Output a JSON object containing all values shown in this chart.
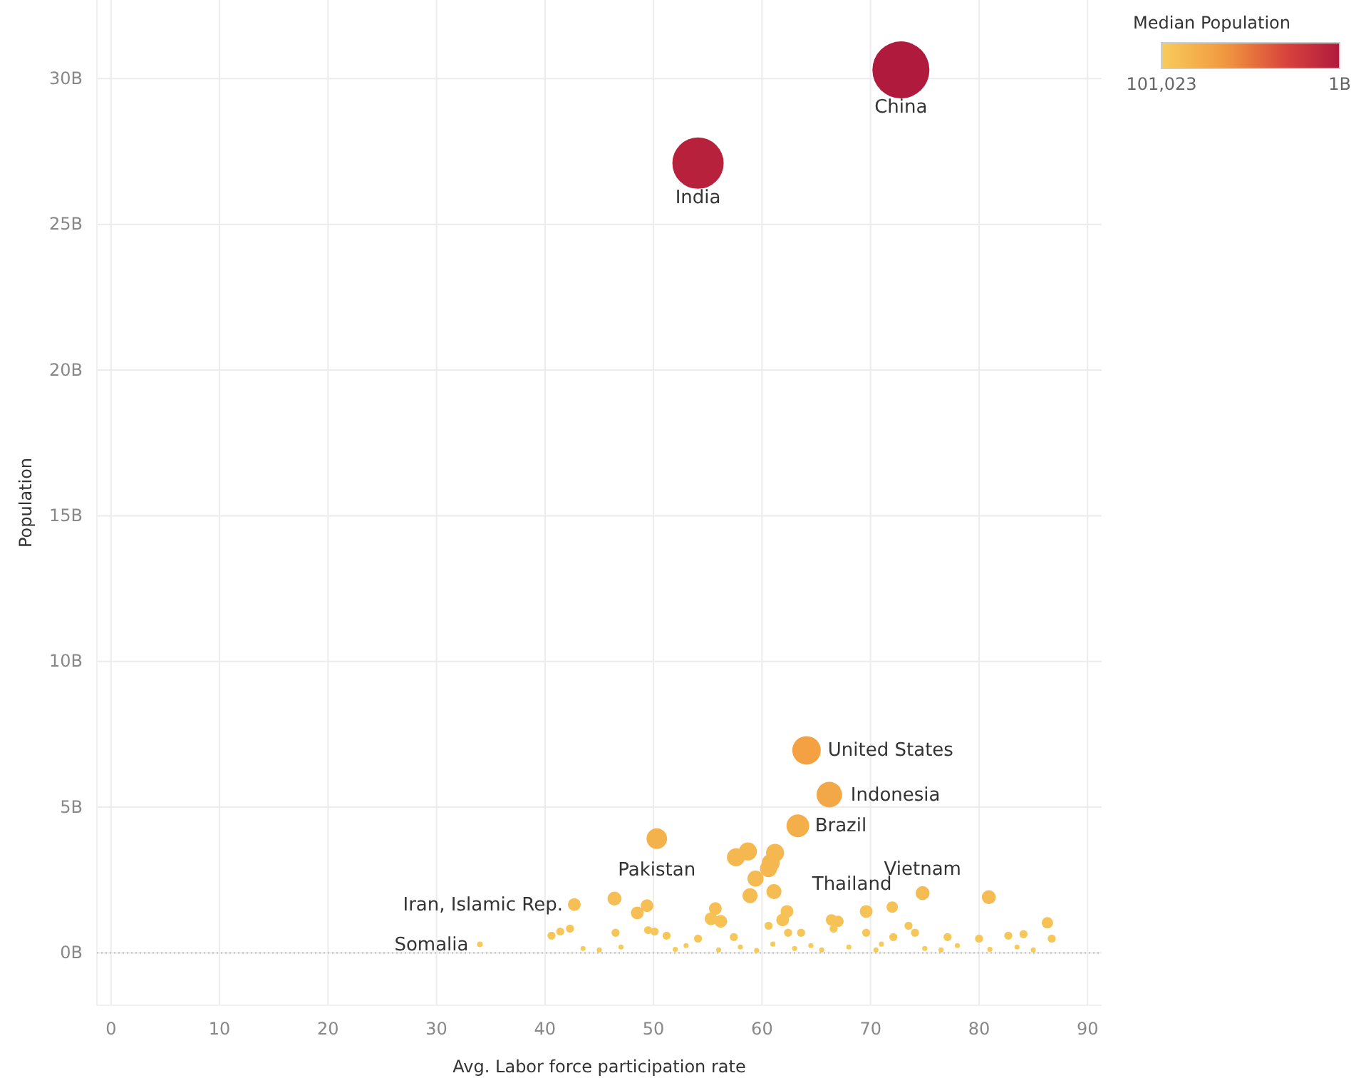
{
  "chart_data": {
    "type": "bubble",
    "xlabel": "Avg. Labor force participation rate",
    "ylabel": "Population",
    "clabel": "Median Population",
    "xlim": [
      -1.3,
      91.3
    ],
    "ylim": [
      -1800000000,
      32700000000
    ],
    "xticks": [
      0,
      10,
      20,
      30,
      40,
      50,
      60,
      70,
      80,
      90
    ],
    "yticks": [
      {
        "value": 0,
        "label": "0B"
      },
      {
        "value": 5000000000,
        "label": "5B"
      },
      {
        "value": 10000000000,
        "label": "10B"
      },
      {
        "value": 15000000000,
        "label": "15B"
      },
      {
        "value": 20000000000,
        "label": "20B"
      },
      {
        "value": 25000000000,
        "label": "25B"
      },
      {
        "value": 30000000000,
        "label": "30B"
      }
    ],
    "grid": true,
    "clim": [
      101023,
      1000000000
    ],
    "cticks": [
      {
        "value": 101023,
        "label": "101,023"
      },
      {
        "value": 1000000000,
        "label": "1B"
      }
    ],
    "ref_lines": [
      {
        "axis": "y",
        "value": 0,
        "color": "#bbbbbb",
        "line_style": "dotted"
      }
    ],
    "x": [
      72.8,
      54.1,
      64.1,
      66.2,
      63.3,
      50.3,
      57.6,
      58.7,
      61.2,
      60.8,
      60.6,
      59.4,
      58.9,
      61.1,
      74.8,
      80.9,
      42.7,
      46.4,
      48.5,
      49.4,
      55.7,
      55.3,
      56.2,
      62.3,
      61.9,
      69.6,
      72.0,
      66.4,
      67.0,
      86.3,
      86.7,
      40.6,
      41.4,
      42.3,
      46.5,
      49.5,
      50.1,
      51.2,
      54.1,
      57.4,
      60.6,
      62.4,
      63.6,
      69.6,
      73.5,
      74.1,
      77.1,
      80.0,
      82.7,
      84.1,
      66.6,
      72.1,
      34.0,
      43.5,
      45,
      47,
      52,
      53,
      56,
      58,
      59.5,
      61,
      63,
      64.5,
      65.5,
      68,
      70.5,
      71,
      75,
      76.5,
      78,
      81,
      83.5,
      85
    ],
    "values": [
      30300000000,
      27100000000,
      6950000000,
      5430000000,
      4360000000,
      3920000000,
      3280000000,
      3480000000,
      3430000000,
      3080000000,
      2890000000,
      2550000000,
      1960000000,
      2100000000,
      2050000000,
      1910000000,
      1660000000,
      1860000000,
      1370000000,
      1620000000,
      1520000000,
      1170000000,
      1080000000,
      1420000000,
      1130000000,
      1420000000,
      1570000000,
      1130000000,
      1080000000,
      1030000000,
      490000000,
      590000000,
      730000000,
      830000000,
      690000000,
      780000000,
      730000000,
      590000000,
      490000000,
      540000000,
      930000000,
      690000000,
      690000000,
      690000000,
      930000000,
      690000000,
      540000000,
      490000000,
      590000000,
      640000000,
      830000000,
      540000000,
      290000000,
      150000000,
      100000000,
      200000000,
      120000000,
      250000000,
      100000000,
      200000000,
      80000000,
      300000000,
      150000000,
      250000000,
      100000000,
      200000000,
      100000000,
      300000000,
      150000000,
      100000000,
      250000000,
      120000000,
      200000000,
      100000000
    ],
    "sizes": [
      1,
      0.81,
      0.25,
      0.2,
      0.16,
      0.13,
      0.1,
      0.1,
      0.1,
      0.1,
      0.09,
      0.08,
      0.07,
      0.07,
      0.06,
      0.06,
      0.05,
      0.06,
      0.05,
      0.05,
      0.05,
      0.05,
      0.05,
      0.05,
      0.05,
      0.05,
      0.04,
      0.04,
      0.04,
      0.04,
      0.02,
      0.02,
      0.02,
      0.02,
      0.02,
      0.02,
      0.02,
      0.02,
      0.02,
      0.02,
      0.02,
      0.02,
      0.02,
      0.02,
      0.02,
      0.02,
      0.02,
      0.02,
      0.02,
      0.02,
      0.02,
      0.02,
      0.01,
      0.008,
      0.008,
      0.008,
      0.008,
      0.008,
      0.008,
      0.008,
      0.008,
      0.008,
      0.008,
      0.008,
      0.008,
      0.008,
      0.008,
      0.008,
      0.008,
      0.008,
      0.008,
      0.008,
      0.008,
      0.008
    ],
    "cvalues": [
      1000000000,
      950000000,
      300000000,
      250000000,
      200000000,
      180000000,
      150000000,
      150000000,
      150000000,
      140000000,
      140000000,
      120000000,
      110000000,
      110000000,
      110000000,
      110000000,
      90000000,
      100000000,
      90000000,
      90000000,
      90000000,
      80000000,
      80000000,
      80000000,
      80000000,
      80000000,
      80000000,
      80000000,
      80000000,
      70000000,
      40000000,
      40000000,
      40000000,
      40000000,
      40000000,
      40000000,
      40000000,
      40000000,
      40000000,
      40000000,
      40000000,
      40000000,
      40000000,
      40000000,
      40000000,
      40000000,
      40000000,
      40000000,
      40000000,
      40000000,
      40000000,
      40000000,
      20000000,
      10000000,
      10000000,
      10000000,
      10000000,
      10000000,
      10000000,
      10000000,
      10000000,
      10000000,
      10000000,
      10000000,
      10000000,
      10000000,
      10000000,
      10000000,
      10000000,
      10000000,
      10000000,
      10000000,
      10000000,
      10000000
    ],
    "annotations": [
      {
        "text": "China",
        "x": 72.8,
        "y": 30300000000
      },
      {
        "text": "India",
        "x": 54.1,
        "y": 27100000000
      },
      {
        "text": "United States",
        "x": 64.1,
        "y": 6950000000
      },
      {
        "text": "Indonesia",
        "x": 66.2,
        "y": 5430000000
      },
      {
        "text": "Brazil",
        "x": 63.3,
        "y": 4360000000
      },
      {
        "text": "Pakistan",
        "x": 50.3,
        "y": 3920000000
      },
      {
        "text": "Iran, Islamic Rep.",
        "x": 42.7,
        "y": 1660000000
      },
      {
        "text": "Somalia",
        "x": 34.0,
        "y": 290000000
      },
      {
        "text": "Thailand",
        "x": 69.6,
        "y": 1420000000
      },
      {
        "text": "Vietnam",
        "x": 74.8,
        "y": 2050000000
      }
    ]
  }
}
